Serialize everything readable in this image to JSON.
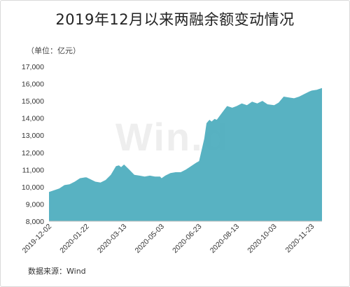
{
  "chart_data": {
    "type": "area",
    "title": "2019年12月以来两融余额变动情况",
    "unit_label": "（单位：亿元）",
    "source": "数据来源：Wind",
    "watermark": "Win.d",
    "area_color": "#4aabbd",
    "ylim": [
      8000,
      17000
    ],
    "y_ticks": [
      "8,000",
      "9,000",
      "10,000",
      "11,000",
      "12,000",
      "13,000",
      "14,000",
      "15,000",
      "16,000",
      "17,000"
    ],
    "x_ticks": [
      "2019-12-02",
      "2020-01-22",
      "2020-03-13",
      "2020-05-03",
      "2020-06-23",
      "2020-08-13",
      "2020-10-03",
      "2020-11-23"
    ],
    "x_range": [
      "2019-12-02",
      "2020-12-07"
    ],
    "series": [
      {
        "x": [
          "2019-12-02",
          "2019-12-09",
          "2019-12-16",
          "2019-12-23",
          "2019-12-30",
          "2020-01-06",
          "2020-01-13",
          "2020-01-20",
          "2020-01-22",
          "2020-02-03",
          "2020-02-10",
          "2020-02-17",
          "2020-02-24",
          "2020-03-02",
          "2020-03-06",
          "2020-03-09",
          "2020-03-13",
          "2020-03-20",
          "2020-03-27",
          "2020-04-03",
          "2020-04-10",
          "2020-04-17",
          "2020-04-24",
          "2020-05-01",
          "2020-05-03",
          "2020-05-08",
          "2020-05-15",
          "2020-05-22",
          "2020-05-29",
          "2020-06-05",
          "2020-06-12",
          "2020-06-19",
          "2020-06-23",
          "2020-06-30",
          "2020-07-03",
          "2020-07-07",
          "2020-07-10",
          "2020-07-14",
          "2020-07-17",
          "2020-07-24",
          "2020-07-31",
          "2020-08-07",
          "2020-08-13",
          "2020-08-20",
          "2020-08-27",
          "2020-09-03",
          "2020-09-10",
          "2020-09-17",
          "2020-09-24",
          "2020-10-03",
          "2020-10-09",
          "2020-10-16",
          "2020-10-23",
          "2020-10-30",
          "2020-11-06",
          "2020-11-13",
          "2020-11-20",
          "2020-11-23",
          "2020-11-30",
          "2020-12-07"
        ],
        "values": [
          9700,
          9800,
          9900,
          10100,
          10150,
          10300,
          10500,
          10550,
          10550,
          10300,
          10250,
          10400,
          10700,
          11200,
          11250,
          11150,
          11300,
          11000,
          10700,
          10650,
          10600,
          10650,
          10600,
          10600,
          10500,
          10650,
          10800,
          10850,
          10850,
          11000,
          11200,
          11400,
          11500,
          12800,
          13700,
          13900,
          13800,
          13950,
          13900,
          14300,
          14700,
          14600,
          14700,
          14850,
          14750,
          14950,
          14850,
          15000,
          14800,
          14750,
          14900,
          15250,
          15200,
          15150,
          15250,
          15400,
          15550,
          15600,
          15650,
          15750
        ]
      }
    ]
  }
}
